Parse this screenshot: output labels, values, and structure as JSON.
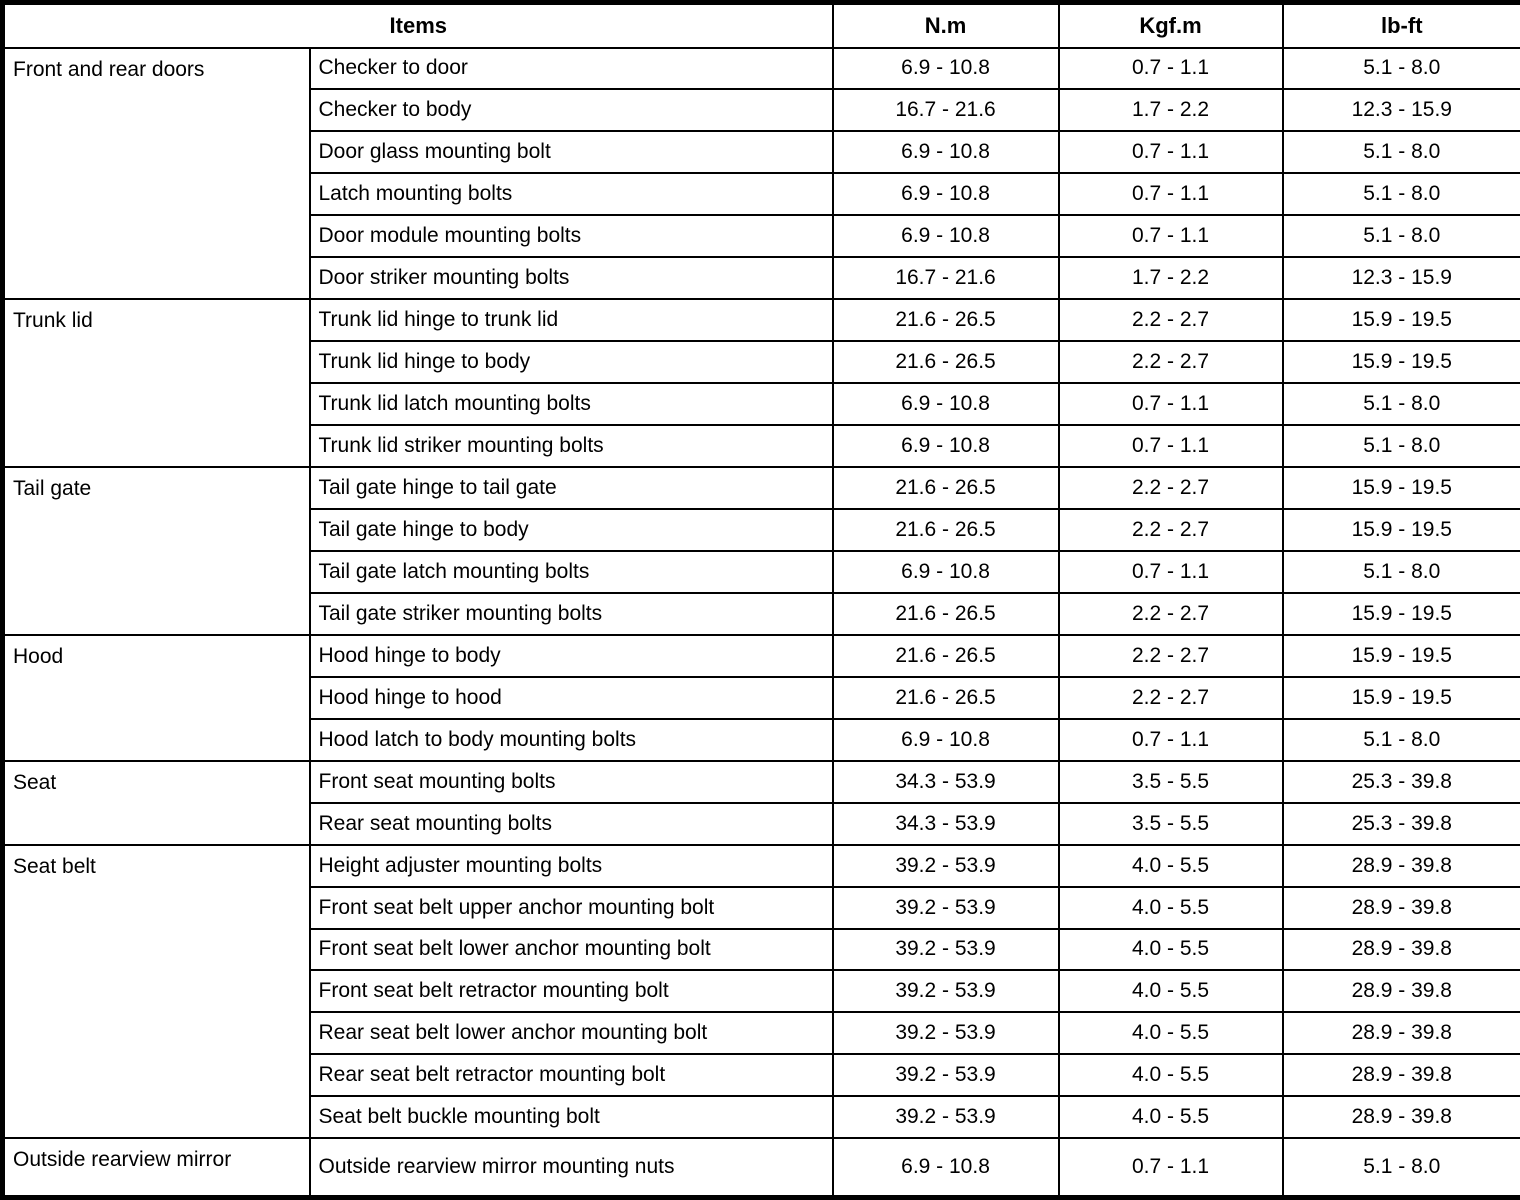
{
  "table": {
    "headers": {
      "items": "Items",
      "nm": "N.m",
      "kgfm": "Kgf.m",
      "lbft": "lb-ft"
    },
    "groups": [
      {
        "name": "Front and rear doors",
        "rows": [
          {
            "item": "Checker to door",
            "nm": "6.9 - 10.8",
            "kgfm": "0.7 - 1.1",
            "lbft": "5.1 - 8.0"
          },
          {
            "item": "Checker to body",
            "nm": "16.7 - 21.6",
            "kgfm": "1.7 - 2.2",
            "lbft": "12.3 - 15.9"
          },
          {
            "item": "Door glass mounting bolt",
            "nm": "6.9 - 10.8",
            "kgfm": "0.7 - 1.1",
            "lbft": "5.1 - 8.0"
          },
          {
            "item": "Latch mounting bolts",
            "nm": "6.9 - 10.8",
            "kgfm": "0.7 - 1.1",
            "lbft": "5.1 - 8.0"
          },
          {
            "item": "Door module mounting bolts",
            "nm": "6.9 - 10.8",
            "kgfm": "0.7 - 1.1",
            "lbft": "5.1 - 8.0"
          },
          {
            "item": "Door striker mounting bolts",
            "nm": "16.7 - 21.6",
            "kgfm": "1.7 - 2.2",
            "lbft": "12.3 - 15.9"
          }
        ]
      },
      {
        "name": "Trunk lid",
        "rows": [
          {
            "item": "Trunk lid hinge to trunk lid",
            "nm": "21.6 - 26.5",
            "kgfm": "2.2 - 2.7",
            "lbft": "15.9 - 19.5"
          },
          {
            "item": "Trunk lid hinge to body",
            "nm": "21.6 - 26.5",
            "kgfm": "2.2 - 2.7",
            "lbft": "15.9 - 19.5"
          },
          {
            "item": "Trunk lid latch mounting bolts",
            "nm": "6.9 - 10.8",
            "kgfm": "0.7 - 1.1",
            "lbft": "5.1 - 8.0"
          },
          {
            "item": "Trunk lid striker mounting bolts",
            "nm": "6.9 - 10.8",
            "kgfm": "0.7 - 1.1",
            "lbft": "5.1 - 8.0"
          }
        ]
      },
      {
        "name": "Tail gate",
        "rows": [
          {
            "item": "Tail gate hinge to tail gate",
            "nm": "21.6 - 26.5",
            "kgfm": "2.2 - 2.7",
            "lbft": "15.9 - 19.5"
          },
          {
            "item": "Tail gate hinge to body",
            "nm": "21.6 - 26.5",
            "kgfm": "2.2 - 2.7",
            "lbft": "15.9 - 19.5"
          },
          {
            "item": "Tail gate latch mounting bolts",
            "nm": "6.9 - 10.8",
            "kgfm": "0.7 - 1.1",
            "lbft": "5.1 - 8.0"
          },
          {
            "item": "Tail gate striker mounting bolts",
            "nm": "21.6 - 26.5",
            "kgfm": "2.2 - 2.7",
            "lbft": "15.9 - 19.5"
          }
        ]
      },
      {
        "name": "Hood",
        "rows": [
          {
            "item": "Hood hinge to body",
            "nm": "21.6 - 26.5",
            "kgfm": "2.2 - 2.7",
            "lbft": "15.9 - 19.5"
          },
          {
            "item": "Hood hinge to hood",
            "nm": "21.6 - 26.5",
            "kgfm": "2.2 - 2.7",
            "lbft": "15.9 - 19.5"
          },
          {
            "item": "Hood latch to body mounting bolts",
            "nm": "6.9 - 10.8",
            "kgfm": "0.7 - 1.1",
            "lbft": "5.1 - 8.0"
          }
        ]
      },
      {
        "name": "Seat",
        "rows": [
          {
            "item": "Front seat mounting bolts",
            "nm": "34.3 - 53.9",
            "kgfm": "3.5 - 5.5",
            "lbft": "25.3 - 39.8"
          },
          {
            "item": "Rear seat mounting bolts",
            "nm": "34.3 - 53.9",
            "kgfm": "3.5 - 5.5",
            "lbft": "25.3 - 39.8"
          }
        ]
      },
      {
        "name": "Seat belt",
        "rows": [
          {
            "item": "Height adjuster mounting bolts",
            "nm": "39.2 - 53.9",
            "kgfm": "4.0 - 5.5",
            "lbft": "28.9 - 39.8"
          },
          {
            "item": "Front seat belt upper anchor mounting bolt",
            "nm": "39.2 - 53.9",
            "kgfm": "4.0 - 5.5",
            "lbft": "28.9 - 39.8"
          },
          {
            "item": "Front seat belt lower anchor mounting bolt",
            "nm": "39.2 - 53.9",
            "kgfm": "4.0 - 5.5",
            "lbft": "28.9 - 39.8"
          },
          {
            "item": "Front seat belt retractor mounting bolt",
            "nm": "39.2 - 53.9",
            "kgfm": "4.0 - 5.5",
            "lbft": "28.9 - 39.8"
          },
          {
            "item": "Rear seat belt lower anchor mounting bolt",
            "nm": "39.2 - 53.9",
            "kgfm": "4.0 - 5.5",
            "lbft": "28.9 - 39.8"
          },
          {
            "item": "Rear seat belt retractor mounting bolt",
            "nm": "39.2 - 53.9",
            "kgfm": "4.0 - 5.5",
            "lbft": "28.9 - 39.8"
          },
          {
            "item": "Seat belt buckle mounting bolt",
            "nm": "39.2 - 53.9",
            "kgfm": "4.0 - 5.5",
            "lbft": "28.9 - 39.8"
          }
        ]
      },
      {
        "name": "Outside rearview mirror",
        "rows": [
          {
            "item": "Outside rearview mirror mounting nuts",
            "nm": "6.9 - 10.8",
            "kgfm": "0.7 - 1.1",
            "lbft": "5.1 - 8.0"
          }
        ]
      }
    ]
  }
}
